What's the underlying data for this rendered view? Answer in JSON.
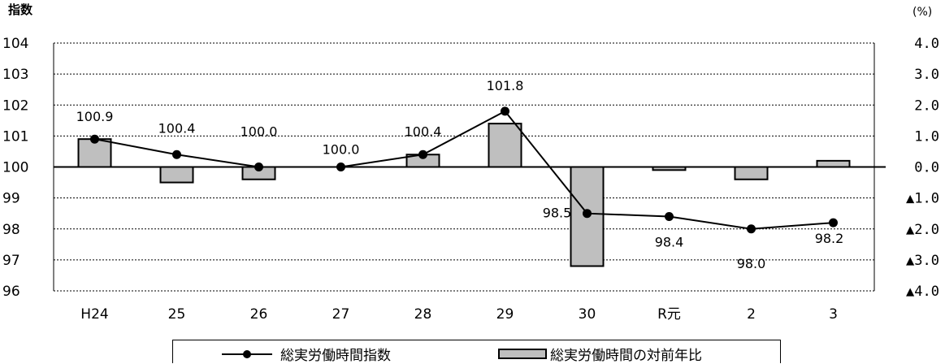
{
  "chart_data": {
    "type": "bar",
    "categories": [
      "H24",
      "25",
      "26",
      "27",
      "28",
      "29",
      "30",
      "R元",
      "2",
      "3"
    ],
    "left_axis": {
      "title": "指数",
      "range": [
        96,
        104
      ],
      "ticks": [
        "104",
        "103",
        "102",
        "101",
        "100",
        "99",
        "98",
        "97",
        "96"
      ]
    },
    "right_axis": {
      "title": "(%)",
      "range": [
        -4,
        4
      ],
      "ticks": [
        "4.0",
        "3.0",
        "2.0",
        "1.0",
        "0.0",
        "▲1.0",
        "▲2.0",
        "▲3.0",
        "▲4.0"
      ]
    },
    "grid": "dotted horizontal",
    "legend_position": "bottom",
    "series": [
      {
        "name": "総実労働時間指数",
        "type": "line",
        "axis": "left",
        "color": "#000000",
        "values": [
          100.9,
          100.4,
          100.0,
          100.0,
          100.4,
          101.8,
          98.5,
          98.4,
          98.0,
          98.2
        ],
        "labels": [
          "100.9",
          "100.4",
          "100.0",
          "100.0",
          "100.4",
          "101.8",
          "98.5",
          "98.4",
          "98.0",
          "98.2"
        ]
      },
      {
        "name": "総実労働時間の対前年比",
        "type": "bar",
        "axis": "right",
        "color": "#bfbfbf",
        "values": [
          0.9,
          -0.5,
          -0.4,
          0.0,
          0.4,
          1.4,
          -3.2,
          -0.1,
          -0.4,
          0.2
        ]
      }
    ]
  }
}
